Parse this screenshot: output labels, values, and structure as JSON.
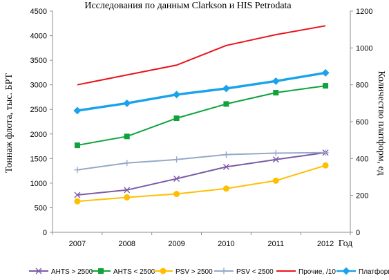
{
  "chart_data": {
    "type": "line",
    "title": "Исследования по данным Clarkson и HIS Petrodata",
    "ylabel": "Тоннаж флота, тыс. БРТ",
    "y2label": "Количество платформ, ед",
    "xlabel": "Год",
    "categories": [
      "2007",
      "2008",
      "2009",
      "2010",
      "2011",
      "2012"
    ],
    "ylim": [
      0,
      4500
    ],
    "y2lim": [
      0,
      1200
    ],
    "yticks": [
      "0",
      "500",
      "1000",
      "1500",
      "2000",
      "2500",
      "3000",
      "3500",
      "4000",
      "4500"
    ],
    "y2ticks": [
      "0",
      "200",
      "400",
      "600",
      "800",
      "1000",
      "1200"
    ],
    "grid": false,
    "legend_position": "bottom",
    "series": [
      {
        "name": "AHTS > 2500",
        "axis": "left",
        "color": "#7b5aa6",
        "marker": "x",
        "width": 2,
        "values": [
          760,
          860,
          1090,
          1330,
          1480,
          1620
        ]
      },
      {
        "name": "AHTS < 2500",
        "axis": "left",
        "color": "#0fa33a",
        "marker": "square",
        "width": 2,
        "values": [
          1770,
          1950,
          2320,
          2610,
          2840,
          2980
        ]
      },
      {
        "name": "PSV > 2500",
        "axis": "left",
        "color": "#ffbf00",
        "marker": "circle",
        "width": 2,
        "values": [
          630,
          710,
          780,
          890,
          1050,
          1360
        ]
      },
      {
        "name": "PSV < 2500",
        "axis": "left",
        "color": "#95a8c8",
        "marker": "plus",
        "width": 2,
        "values": [
          1270,
          1410,
          1480,
          1580,
          1610,
          1620
        ]
      },
      {
        "name": "Прочие, /10",
        "axis": "left",
        "color": "#e8141c",
        "marker": "none",
        "width": 2,
        "values": [
          3000,
          3200,
          3400,
          3800,
          4020,
          4200
        ]
      },
      {
        "name": "Платформы",
        "axis": "right",
        "color": "#1aa3ea",
        "marker": "diamond",
        "width": 3.5,
        "values": [
          660,
          700,
          747,
          780,
          820,
          865
        ]
      }
    ]
  }
}
